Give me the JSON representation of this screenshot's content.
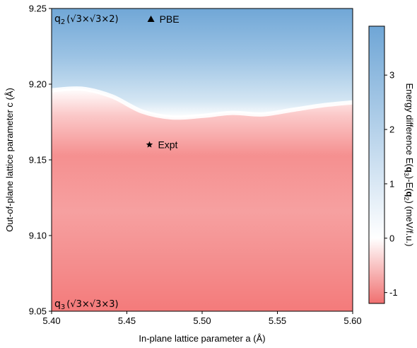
{
  "chart_data": {
    "type": "heatmap",
    "title": "",
    "xlabel": "In-plane lattice parameter a (Å)",
    "ylabel": "Out-of-plane lattice parameter c (Å)",
    "xlim": [
      5.4,
      5.6
    ],
    "ylim": [
      9.05,
      9.25
    ],
    "xticks": [
      "5.40",
      "5.45",
      "5.50",
      "5.55",
      "5.60"
    ],
    "yticks": [
      "9.05",
      "9.10",
      "9.15",
      "9.20",
      "9.25"
    ],
    "colorbar": {
      "label": "Energy difference E(q₃)-E(q₂) (meV/f.u.)",
      "range": [
        -1.2,
        3.9
      ],
      "ticks": [
        "-1",
        "0",
        "1",
        "2",
        "3"
      ],
      "colormap": "diverging red-white-blue",
      "low_color": "#f07070",
      "mid_color": "#ffffff",
      "high_color": "#6fa6d6"
    },
    "boundary_c": [
      {
        "a": 5.4,
        "c": 9.196
      },
      {
        "a": 5.42,
        "c": 9.197
      },
      {
        "a": 5.44,
        "c": 9.192
      },
      {
        "a": 5.46,
        "c": 9.182
      },
      {
        "a": 5.48,
        "c": 9.178
      },
      {
        "a": 5.5,
        "c": 9.179
      },
      {
        "a": 5.52,
        "c": 9.181
      },
      {
        "a": 5.54,
        "c": 9.18
      },
      {
        "a": 5.56,
        "c": 9.183
      },
      {
        "a": 5.58,
        "c": 9.186
      },
      {
        "a": 5.6,
        "c": 9.188
      }
    ],
    "points": [
      {
        "label": "PBE",
        "a": 5.466,
        "c": 9.243,
        "marker": "triangle"
      },
      {
        "label": "Expt",
        "a": 5.465,
        "c": 9.16,
        "marker": "star"
      }
    ],
    "regions": [
      {
        "label": "q",
        "subscript": "2",
        "formula": "(√3×√3×2)",
        "position": "top-left"
      },
      {
        "label": "q",
        "subscript": "3",
        "formula": "(√3×√3×3)",
        "position": "bottom-left"
      }
    ]
  }
}
